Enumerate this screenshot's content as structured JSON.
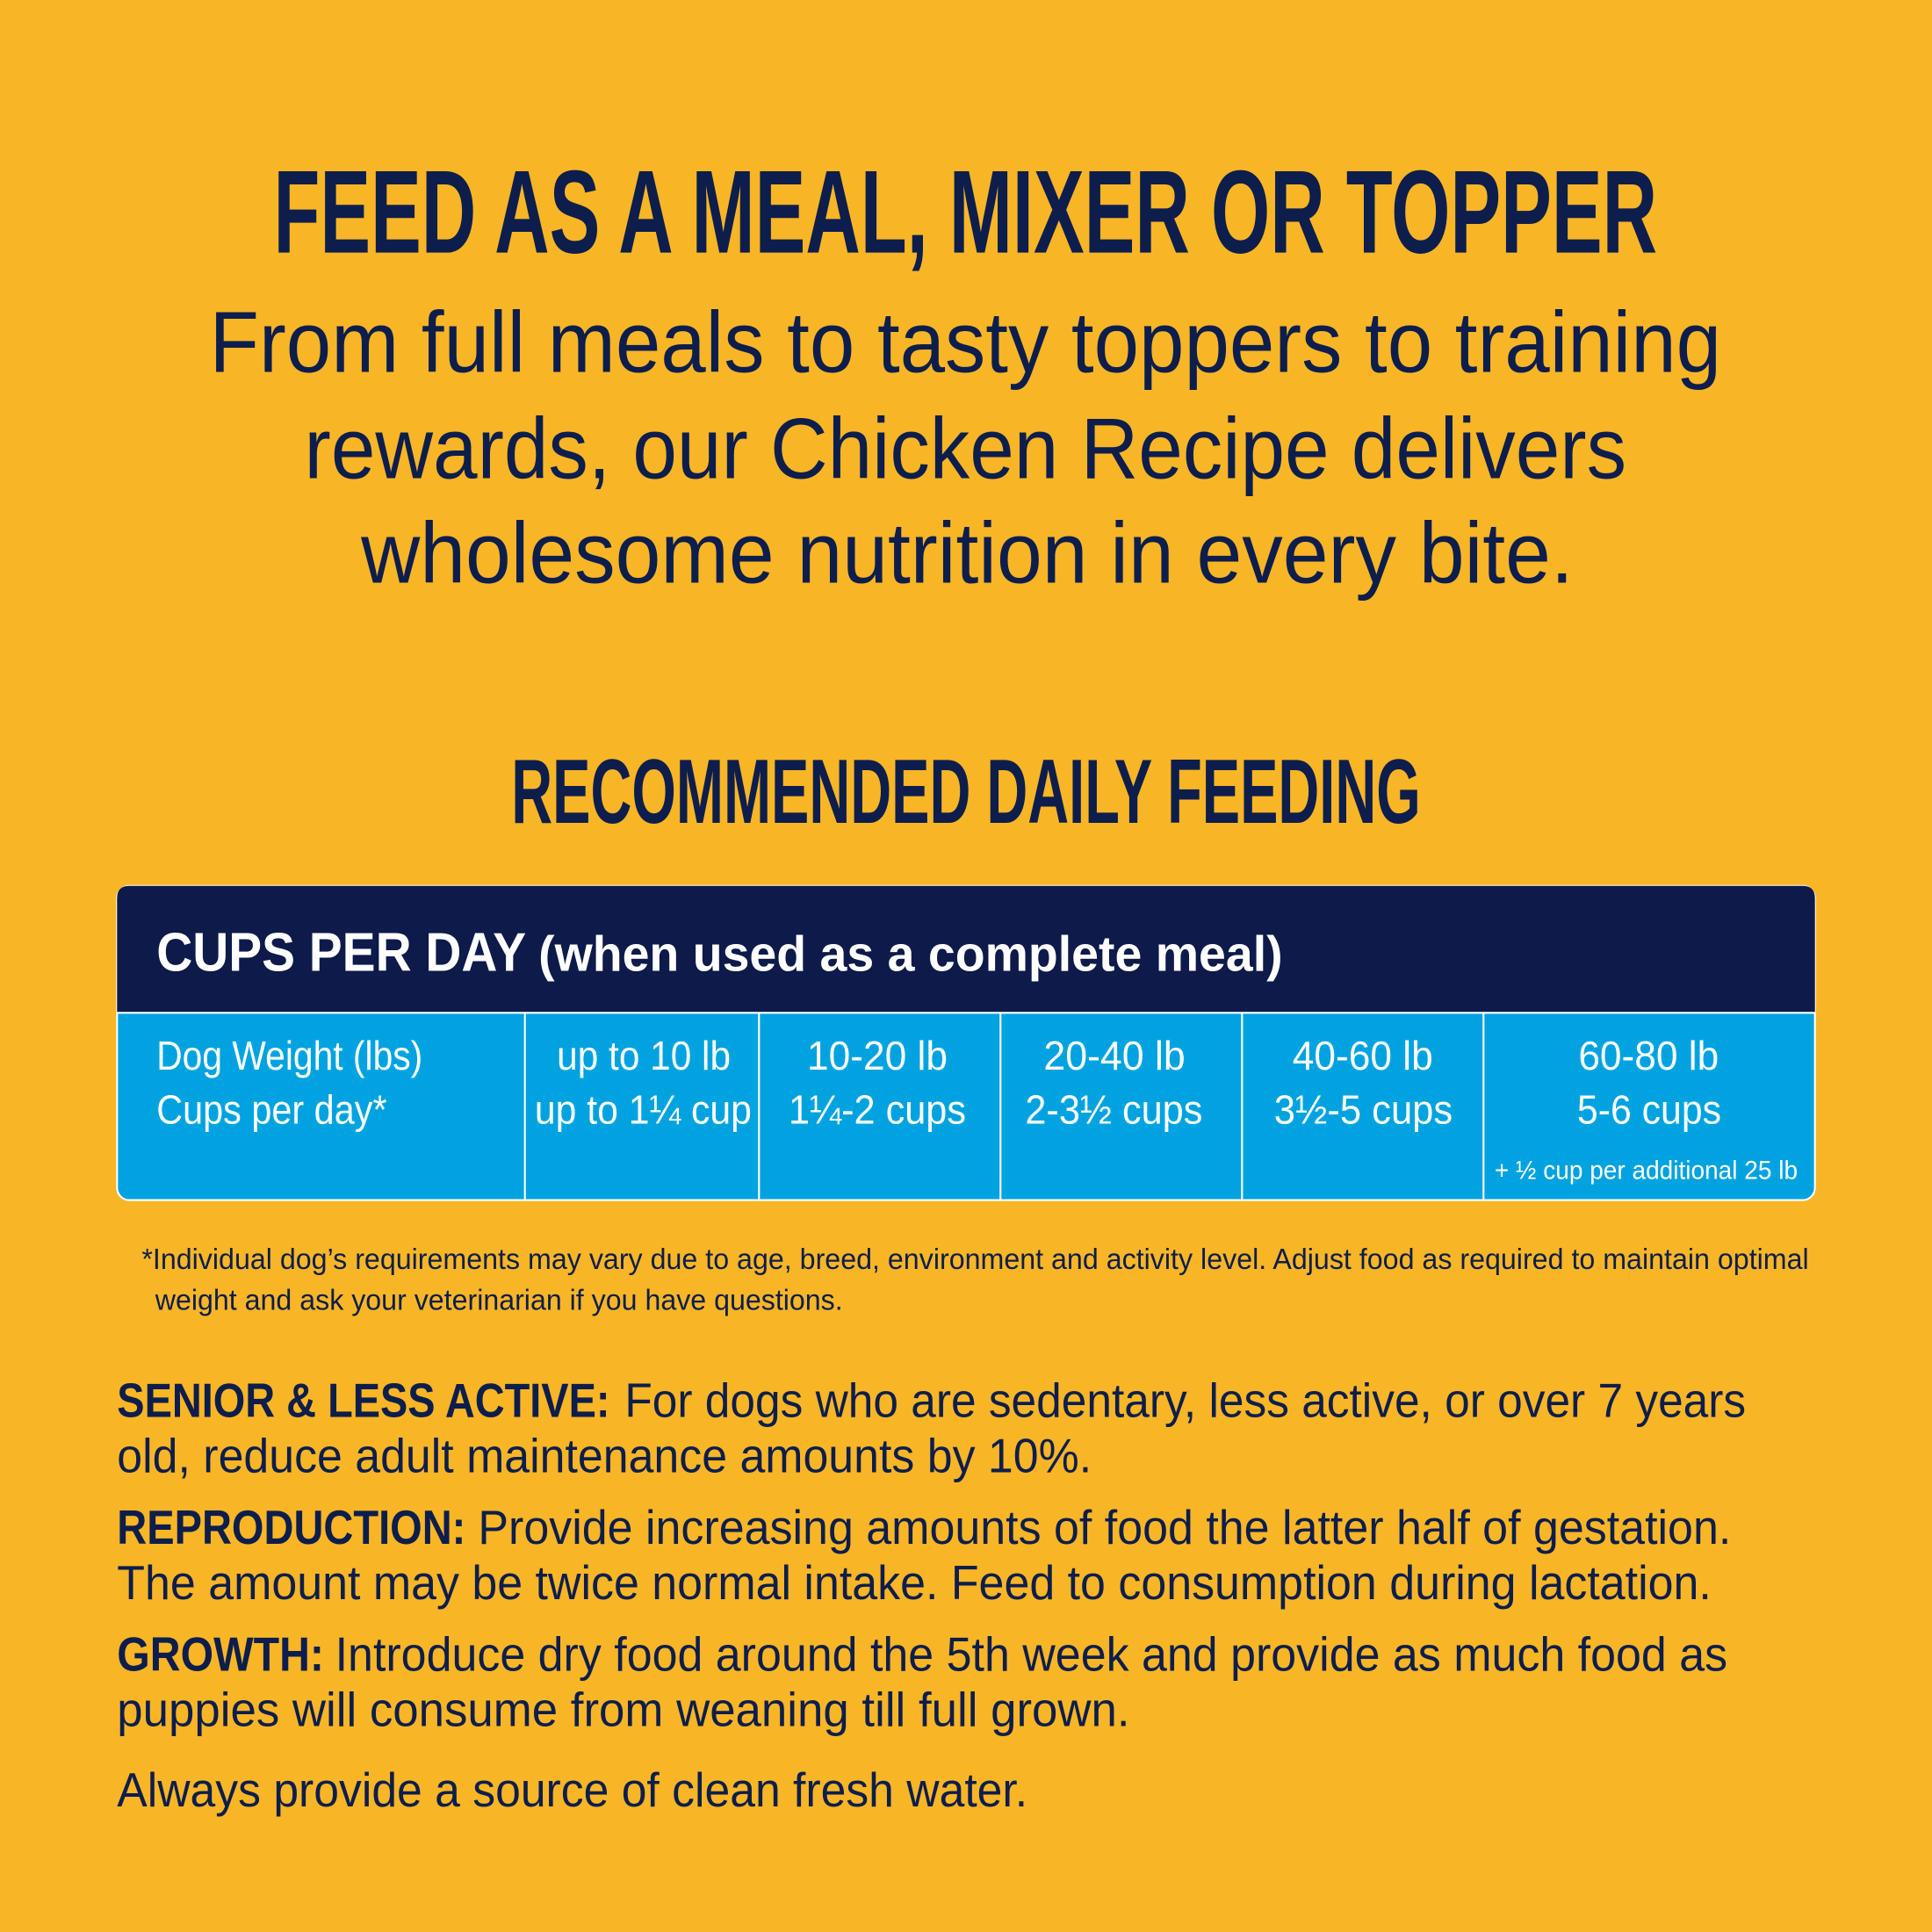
{
  "header": {
    "title": "FEED AS A MEAL, MIXER OR TOPPER",
    "subtitle_lines": [
      "From full meals to tasty toppers to training",
      "rewards, our Chicken Recipe delivers",
      "wholesome nutrition in every bite."
    ]
  },
  "section": {
    "title": "RECOMMENDED DAILY FEEDING"
  },
  "table": {
    "header_bold": "CUPS PER DAY",
    "header_rest": "(when used as a complete meal)",
    "columns": [
      {
        "weight": "Dog Weight (lbs)",
        "cups": "Cups per day*"
      },
      {
        "weight": "up to 10 lb",
        "cups": "up to 1¼ cup"
      },
      {
        "weight": "10-20 lb",
        "cups": "1¼-2 cups"
      },
      {
        "weight": "20-40 lb",
        "cups": "2-3½ cups"
      },
      {
        "weight": "40-60 lb",
        "cups": "3½-5 cups"
      },
      {
        "weight": "60-80 lb",
        "cups": "5-6 cups",
        "note": "+ ½ cup per additional 25 lb"
      }
    ]
  },
  "footnote": [
    "*Individual dog’s requirements may vary due to age, breed, environment and activity level. Adjust food as required to maintain optimal",
    "weight and ask your veterinarian if you have questions."
  ],
  "paragraphs": [
    {
      "label": "SENIOR & LESS ACTIVE:",
      "lines": [
        "For dogs who are sedentary, less active, or over 7 years",
        "old, reduce adult maintenance amounts by 10%."
      ]
    },
    {
      "label": "REPRODUCTION:",
      "lines": [
        "Provide increasing amounts of food the latter half of gestation.",
        "The amount may be twice normal intake. Feed to consumption during lactation."
      ]
    },
    {
      "label": "GROWTH:",
      "lines": [
        "Introduce dry food around the 5th week and provide as much food as",
        "puppies will consume from weaning till full grown."
      ]
    },
    {
      "lines": [
        "Always provide a source of clean fresh water."
      ]
    }
  ]
}
